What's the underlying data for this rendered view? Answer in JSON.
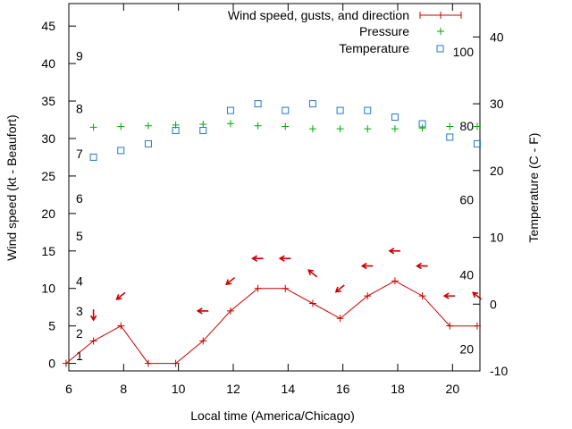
{
  "chart_data": {
    "type": "line",
    "title": "",
    "xlabel": "Local time (America/Chicago)",
    "ylabel": "Wind speed (kt - Beaufort)",
    "y2label": "Temperature (C - F)",
    "xlim": [
      6,
      21
    ],
    "ylim": [
      -1,
      48
    ],
    "y2lim": [
      -10,
      45
    ],
    "x_ticks": [
      6,
      8,
      10,
      12,
      14,
      16,
      18,
      20
    ],
    "y_ticks": [
      0,
      5,
      10,
      15,
      20,
      25,
      30,
      35,
      40,
      45
    ],
    "y2_ticks": [
      -10,
      0,
      10,
      20,
      30,
      40
    ],
    "beaufort_ticks": [
      {
        "label": "1",
        "kt": 1
      },
      {
        "label": "2",
        "kt": 4
      },
      {
        "label": "3",
        "kt": 7
      },
      {
        "label": "4",
        "kt": 11
      },
      {
        "label": "5",
        "kt": 17
      },
      {
        "label": "6",
        "kt": 22
      },
      {
        "label": "7",
        "kt": 28
      },
      {
        "label": "8",
        "kt": 34
      },
      {
        "label": "9",
        "kt": 41
      }
    ],
    "fahrenheit_ticks": [
      {
        "label": "20",
        "c": -6.7
      },
      {
        "label": "40",
        "c": 4.4
      },
      {
        "label": "60",
        "c": 15.6
      },
      {
        "label": "80",
        "c": 26.7
      },
      {
        "label": "100",
        "c": 37.8
      }
    ],
    "legend": {
      "position": "top-right",
      "entries": [
        "Wind speed, gusts, and direction",
        "Pressure",
        "Temperature"
      ]
    },
    "series": [
      {
        "name": "Wind speed, gusts, and direction",
        "color": "#cc0000",
        "x": [
          5.9,
          6.9,
          7.9,
          8.9,
          9.9,
          10.9,
          11.9,
          12.9,
          13.9,
          14.9,
          15.9,
          16.9,
          17.9,
          18.9,
          19.9,
          20.9
        ],
        "values": [
          0,
          3,
          5,
          0,
          0,
          3,
          7,
          10,
          10,
          8,
          6,
          9,
          11,
          9,
          5,
          5
        ]
      },
      {
        "name": "Pressure",
        "color": "#00aa00",
        "x": [
          6.9,
          7.9,
          8.9,
          9.9,
          10.9,
          11.9,
          12.9,
          13.9,
          14.9,
          15.9,
          16.9,
          17.9,
          18.9,
          19.9,
          20.9
        ],
        "values": [
          31.5,
          31.6,
          31.7,
          31.8,
          31.9,
          32.0,
          31.7,
          31.6,
          31.3,
          31.3,
          31.3,
          31.3,
          31.4,
          31.6,
          31.6
        ]
      },
      {
        "name": "Temperature",
        "color": "#1e7ac8",
        "axis": "y2",
        "x": [
          6.9,
          7.9,
          8.9,
          9.9,
          10.9,
          11.9,
          12.9,
          13.9,
          14.9,
          15.9,
          16.9,
          17.9,
          18.9,
          19.9,
          20.9
        ],
        "values": [
          22,
          23,
          24,
          26,
          26,
          29,
          30,
          29,
          30,
          29,
          29,
          28,
          27,
          25,
          24
        ]
      }
    ],
    "wind_direction_arrows": [
      {
        "x": 6.9,
        "y": 6.5,
        "dir": "down"
      },
      {
        "x": 7.9,
        "y": 9,
        "dir": "down-left"
      },
      {
        "x": 10.9,
        "y": 7,
        "dir": "left"
      },
      {
        "x": 11.9,
        "y": 11,
        "dir": "down-left"
      },
      {
        "x": 12.9,
        "y": 14,
        "dir": "left"
      },
      {
        "x": 13.9,
        "y": 14,
        "dir": "left"
      },
      {
        "x": 14.9,
        "y": 12,
        "dir": "up-left"
      },
      {
        "x": 15.9,
        "y": 10,
        "dir": "down-left"
      },
      {
        "x": 16.9,
        "y": 13,
        "dir": "left"
      },
      {
        "x": 17.9,
        "y": 15,
        "dir": "left"
      },
      {
        "x": 18.9,
        "y": 13,
        "dir": "left"
      },
      {
        "x": 19.9,
        "y": 9,
        "dir": "left"
      },
      {
        "x": 20.9,
        "y": 9,
        "dir": "up-left"
      }
    ]
  }
}
